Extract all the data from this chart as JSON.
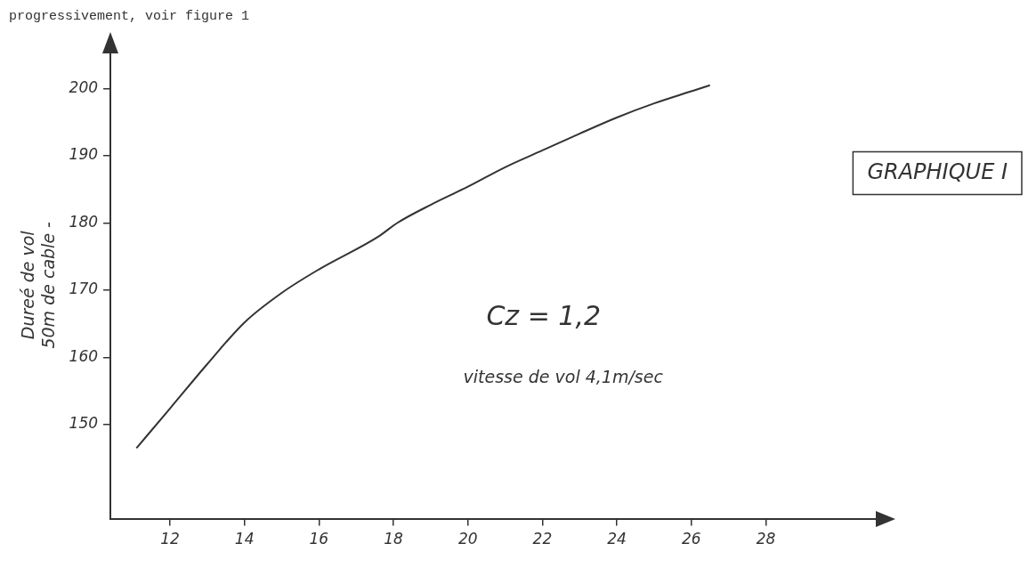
{
  "chart_data": {
    "type": "line",
    "title": "GRAPHIQUE I",
    "ylabel": "Dureé de vol\n50m de cable -",
    "annotations": [
      "progressivement, voir figure 1",
      "Cz = 1,2",
      "vitesse de vol 4,1m/sec"
    ],
    "x": [
      11.1,
      12,
      13,
      14,
      15,
      16,
      17.6,
      18.1,
      19,
      20,
      21,
      22,
      23,
      24,
      25,
      26,
      26.5
    ],
    "series": [
      {
        "color": "#333333",
        "values": [
          146.5,
          152.4,
          159,
          165.2,
          169.6,
          173.1,
          178,
          180,
          182.7,
          185.4,
          188.3,
          190.8,
          193.3,
          195.7,
          197.8,
          199.6,
          200.5
        ]
      }
    ],
    "xlim": [
      10.4,
      31
    ],
    "ylim": [
      136,
      205.5
    ],
    "xticks": [
      12,
      14,
      16,
      18,
      20,
      22,
      24,
      26,
      28
    ],
    "yticks": [
      150,
      160,
      170,
      180,
      190,
      200
    ],
    "grid": false,
    "legend": false,
    "marker": "none",
    "line_style": "solid"
  }
}
